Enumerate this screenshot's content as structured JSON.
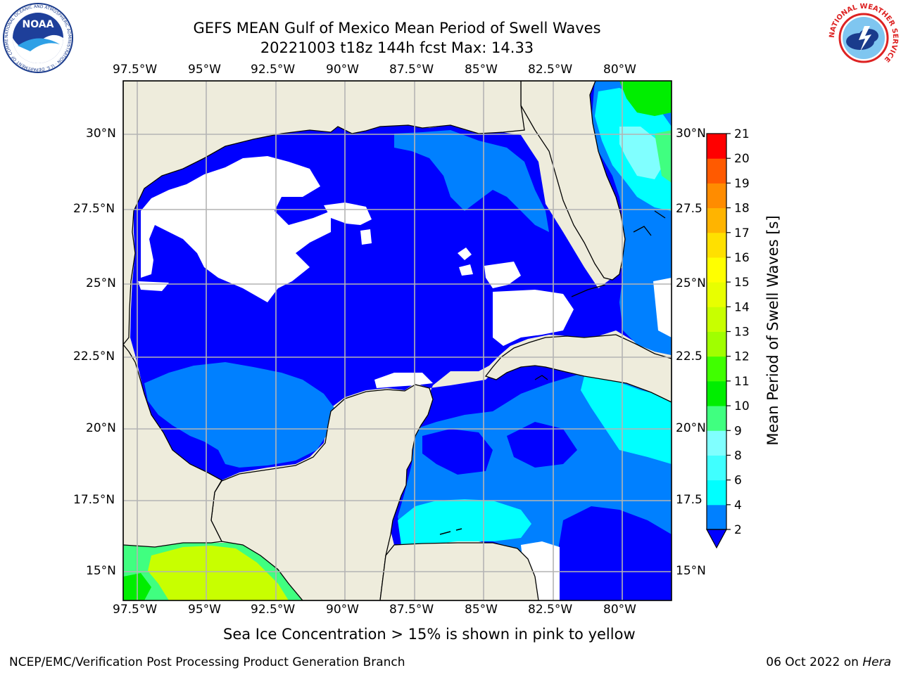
{
  "header": {
    "title_line1": "GEFS MEAN Gulf of Mexico Mean Period of Swell Waves",
    "title_line2": "20221003 t18z 144h fcst   Max: 14.33"
  },
  "logos": {
    "noaa_text": "NOAA",
    "noaa_ring_text": "NATIONAL OCEANIC AND ATMOSPHERIC ADMINISTRATION · U.S. DEPARTMENT OF COMMERCE",
    "nws_ring_text": "NATIONAL WEATHER SERVICE"
  },
  "map": {
    "lon_labels": [
      "97.5°W",
      "95°W",
      "92.5°W",
      "90°W",
      "87.5°W",
      "85°W",
      "82.5°W",
      "80°W"
    ],
    "lat_labels_left": [
      "30°N",
      "27.5°N",
      "25°N",
      "22.5°N",
      "20°N",
      "17.5°N",
      "15°N"
    ],
    "lat_labels_right": [
      "30°N",
      "27.5",
      "25°N",
      "22.5",
      "20°N",
      "17.5",
      "15°N"
    ],
    "colors": {
      "land": "#eeecdc",
      "ocean_low": "#0000ff",
      "ocean_2_4": "#0080ff",
      "ocean_4_6": "#00ffff",
      "ocean_8_9": "#80ffff",
      "grid": "#b4b4b4"
    }
  },
  "colorbar": {
    "label": "Mean Period of Swell Waves [s]",
    "ticks": [
      "2",
      "4",
      "6",
      "8",
      "9",
      "10",
      "11",
      "12",
      "13",
      "14",
      "15",
      "16",
      "17",
      "18",
      "19",
      "20",
      "21"
    ],
    "colors": [
      "#0080ff",
      "#00ffff",
      "#40ffff",
      "#80ffff",
      "#40ff80",
      "#00ee00",
      "#40ff00",
      "#a0ff00",
      "#c8ff00",
      "#e8ff00",
      "#ffff00",
      "#ffe000",
      "#ffb400",
      "#ff8c00",
      "#ff5a00",
      "#ff2800",
      "#ff0000"
    ],
    "under_color": "#0000ff"
  },
  "caption": "Sea Ice Concentration > 15% is shown in pink to yellow",
  "footer": {
    "left": "NCEP/EMC/Verification Post Processing Product Generation Branch",
    "right_prefix": "06 Oct 2022 on ",
    "right_host": "Hera"
  }
}
